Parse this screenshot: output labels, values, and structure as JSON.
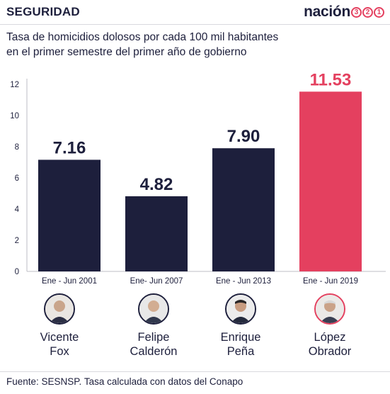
{
  "header": {
    "section": "SEGURIDAD",
    "brand": "nación",
    "brand_digits": [
      "3",
      "2",
      "1"
    ]
  },
  "subtitle": {
    "line1": "Tasa de homicidios dolosos por cada 100 mil habitantes",
    "line2": "en el primer semestre del primer año de gobierno"
  },
  "colors": {
    "navy": "#1d1f3c",
    "highlight": "#e4405f",
    "axis": "#bcbcc4"
  },
  "chart_data": {
    "type": "bar",
    "categories": [
      "Ene - Jun 2001",
      "Ene- Jun 2007",
      "Ene - Jun 2013",
      "Ene - Jun 2019"
    ],
    "values": [
      7.16,
      4.82,
      7.9,
      11.53
    ],
    "value_labels": [
      "7.16",
      "4.82",
      "7.90",
      "11.53"
    ],
    "highlight_index": 3,
    "ylim": [
      0,
      12
    ],
    "yticks": [
      0,
      2,
      4,
      6,
      8,
      10,
      12
    ],
    "grid": false,
    "title": "",
    "xlabel": "",
    "ylabel": ""
  },
  "people": [
    {
      "first": "Vicente",
      "last": "Fox",
      "icon": "portrait-icon"
    },
    {
      "first": "Felipe",
      "last": "Calderón",
      "icon": "portrait-icon"
    },
    {
      "first": "Enrique",
      "last": "Peña",
      "icon": "portrait-icon"
    },
    {
      "first": "López",
      "last": "Obrador",
      "icon": "portrait-icon"
    }
  ],
  "footer": {
    "source": "Fuente: SESNSP. Tasa calculada con datos del Conapo"
  }
}
